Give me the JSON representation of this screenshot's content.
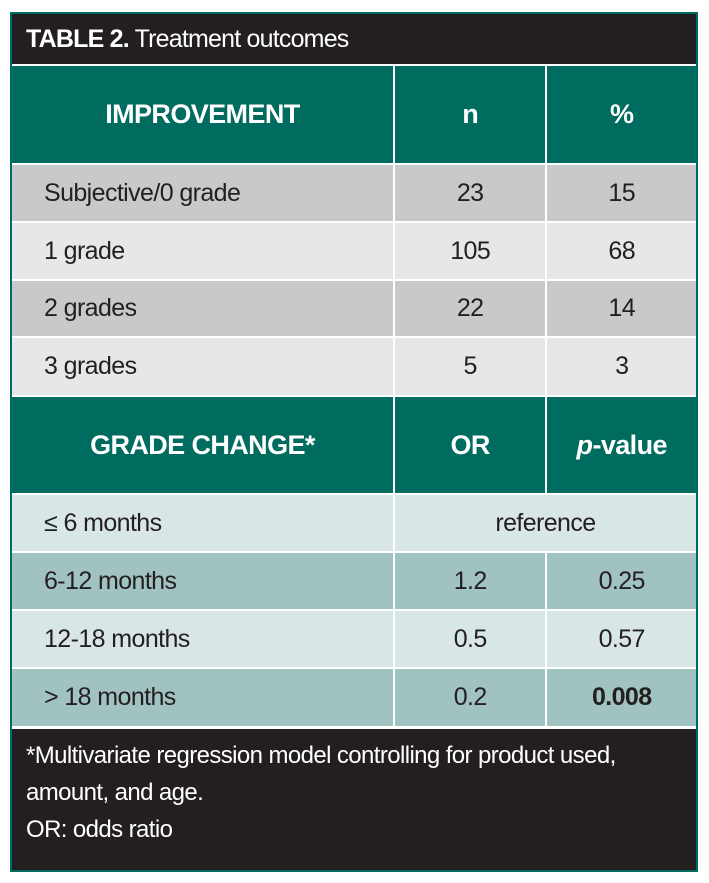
{
  "title": {
    "label": "TABLE 2.",
    "text": "Treatment outcomes"
  },
  "section1": {
    "headers": [
      "IMPROVEMENT",
      "n",
      "%"
    ],
    "rows": [
      [
        "Subjective/0 grade",
        "23",
        "15"
      ],
      [
        "1 grade",
        "105",
        "68"
      ],
      [
        "2 grades",
        "22",
        "14"
      ],
      [
        "3 grades",
        "5",
        "3"
      ]
    ]
  },
  "section2": {
    "headers": [
      "GRADE CHANGE*",
      "OR",
      "p",
      "-value"
    ],
    "reference_row": [
      "≤ 6 months",
      "reference"
    ],
    "rows": [
      [
        "6-12 months",
        "1.2",
        "0.25"
      ],
      [
        "12-18 months",
        "0.5",
        "0.57"
      ],
      [
        "> 18 months",
        "0.2",
        "0.008"
      ]
    ]
  },
  "footnotes": [
    "*Multivariate regression model controlling for product used, amount, and age.",
    "OR: odds ratio"
  ],
  "colors": {
    "teal": "#006b5f",
    "dark": "#231f20",
    "grey": "#c8c9cb",
    "light_grey": "#e6e7e8",
    "light_teal": "#d9e6e7",
    "mid_teal": "#a0c2c0"
  }
}
